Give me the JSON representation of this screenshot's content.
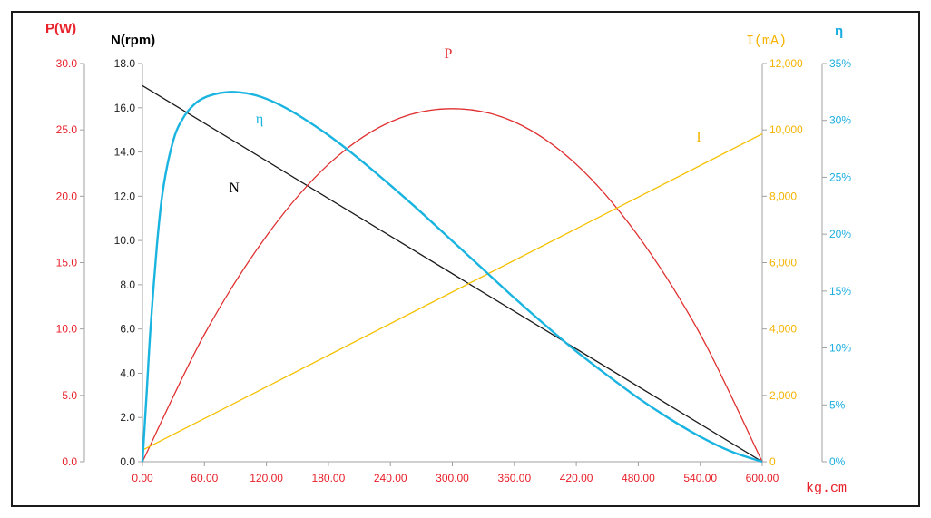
{
  "chart_data": {
    "type": "line",
    "x_axis": {
      "label": "kg.cm",
      "range": [
        0,
        600
      ],
      "ticks": [
        "0.00",
        "60.00",
        "120.00",
        "180.00",
        "240.00",
        "300.00",
        "360.00",
        "420.00",
        "480.00",
        "540.00",
        "600.00"
      ]
    },
    "axes": {
      "P": {
        "title": "P(W)",
        "range": [
          0,
          30
        ],
        "ticks": [
          "0.0",
          "5.0",
          "10.0",
          "15.0",
          "20.0",
          "25.0",
          "30.0"
        ],
        "color": "#e8202a"
      },
      "N": {
        "title": "N(rpm)",
        "range": [
          0,
          18
        ],
        "ticks": [
          "0.0",
          "2.0",
          "4.0",
          "6.0",
          "8.0",
          "10.0",
          "12.0",
          "14.0",
          "16.0",
          "18.0"
        ],
        "color": "#000000"
      },
      "I": {
        "title": "I(mA)",
        "range": [
          0,
          12000
        ],
        "ticks": [
          "0",
          "2,000",
          "4,000",
          "6,000",
          "8,000",
          "10,000",
          "12,000"
        ],
        "color": "#f5b400"
      },
      "eta": {
        "title": "η",
        "range": [
          0,
          35
        ],
        "ticks": [
          "0%",
          "5%",
          "10%",
          "15%",
          "20%",
          "25%",
          "30%",
          "35%"
        ],
        "color": "#1aaee0"
      }
    },
    "series": [
      {
        "name": "N",
        "axis": "N",
        "color": "#1a1a1a",
        "x": [
          0,
          600
        ],
        "y": [
          17,
          0
        ]
      },
      {
        "name": "P",
        "axis": "P",
        "color": "#e03030",
        "x": [
          0,
          60,
          120,
          180,
          240,
          300,
          360,
          420,
          480,
          540,
          600
        ],
        "y": [
          0,
          9.6,
          17.0,
          22.4,
          25.6,
          26.6,
          25.6,
          22.4,
          17.0,
          9.6,
          0
        ]
      },
      {
        "name": "I",
        "axis": "I",
        "color": "#f5c000",
        "x": [
          0,
          600
        ],
        "y": [
          350,
          9880
        ]
      },
      {
        "name": "η",
        "axis": "eta",
        "color": "#1ab4e0",
        "x": [
          0,
          4,
          8,
          14,
          20,
          30,
          40,
          50,
          60,
          75,
          90,
          110,
          130,
          150,
          180,
          210,
          240,
          270,
          300,
          330,
          360,
          390,
          420,
          450,
          480,
          510,
          540,
          570,
          600
        ],
        "y": [
          0,
          6,
          12,
          19,
          24,
          28.3,
          30.3,
          31.4,
          32.0,
          32.4,
          32.5,
          32.2,
          31.5,
          30.5,
          28.7,
          26.6,
          24.3,
          21.9,
          19.4,
          16.9,
          14.4,
          12.0,
          9.7,
          7.6,
          5.6,
          3.8,
          2.2,
          0.9,
          0
        ]
      }
    ],
    "curve_labels": [
      {
        "text": "P",
        "color": "#e03030"
      },
      {
        "text": "η",
        "color": "#1ab4e0"
      },
      {
        "text": "N",
        "color": "#000000"
      },
      {
        "text": "I",
        "color": "#f5b400"
      }
    ],
    "grid": false,
    "legend": "none"
  }
}
